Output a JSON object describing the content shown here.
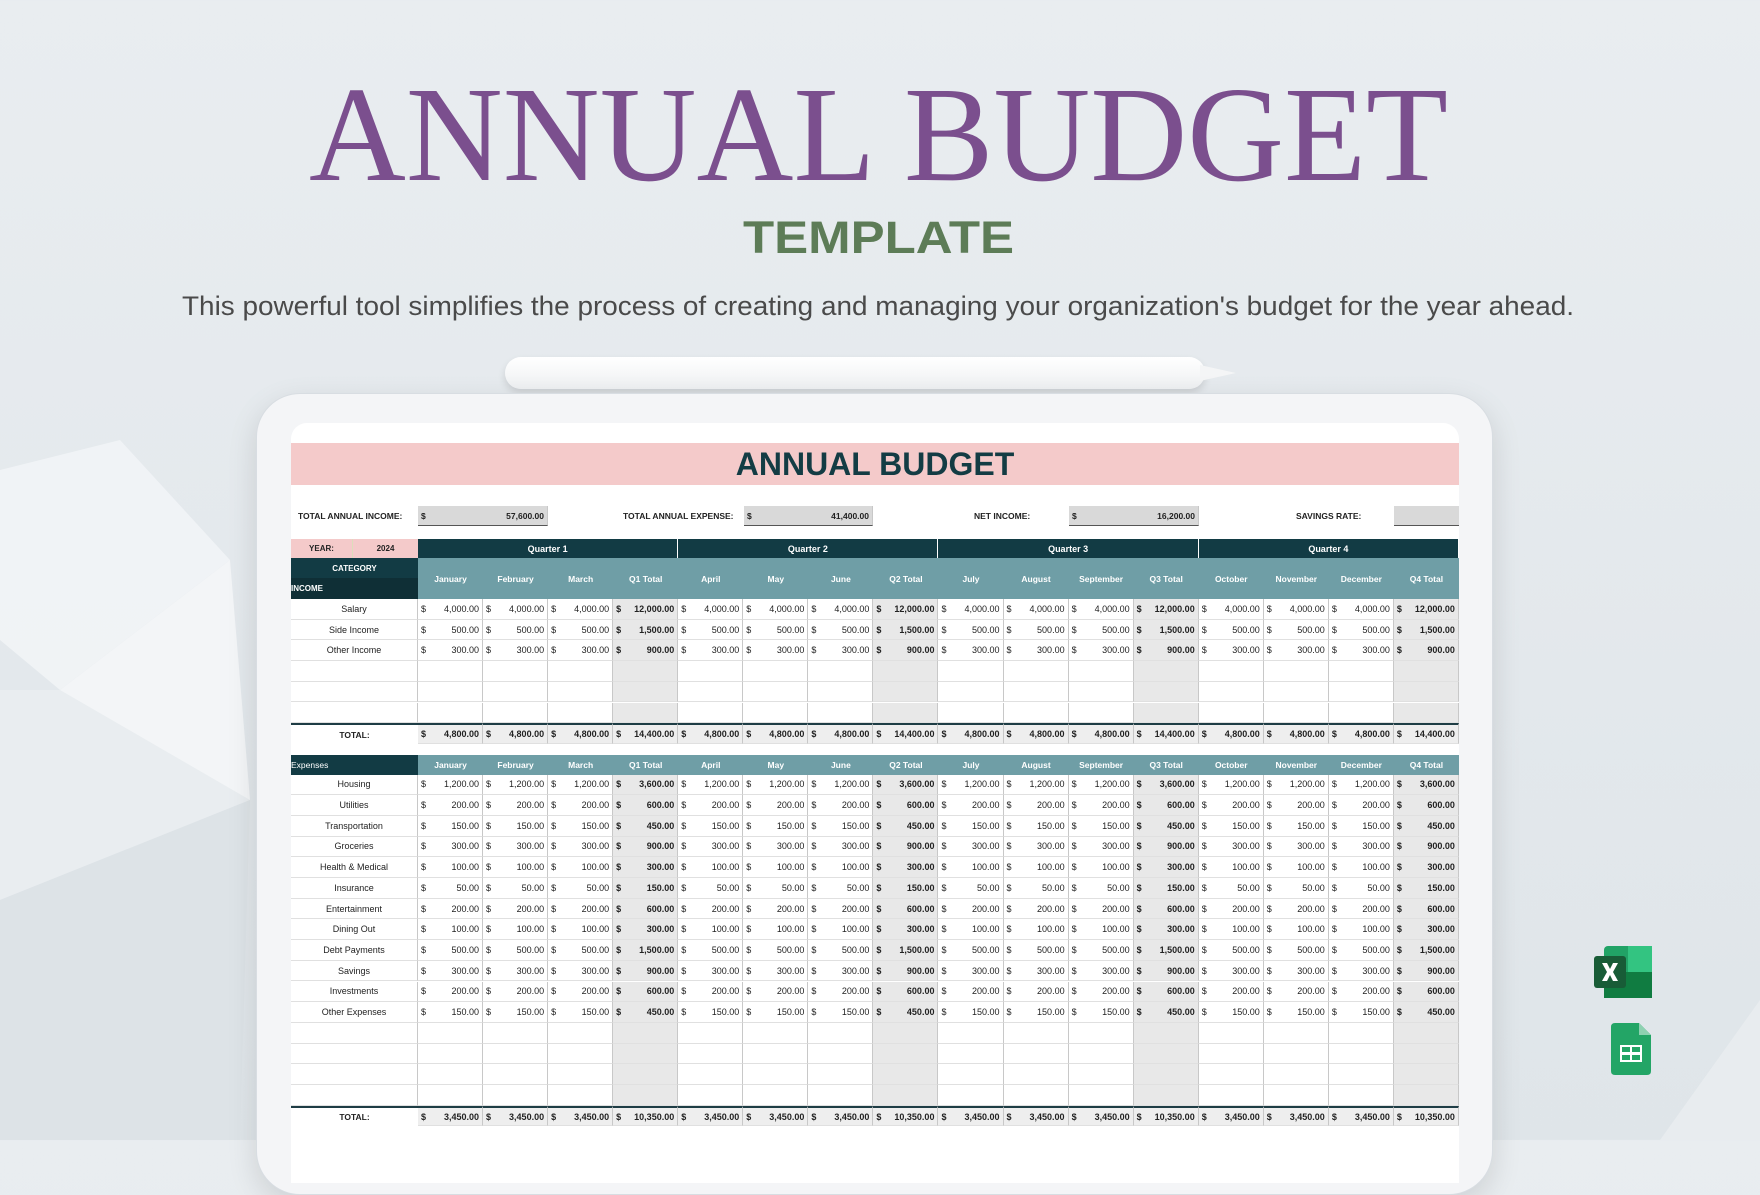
{
  "header": {
    "title": "ANNUAL BUDGET",
    "subtitle": "TEMPLATE",
    "description": "This powerful tool simplifies the process of creating and managing your organization's budget for the year ahead."
  },
  "sheet": {
    "title": "ANNUAL BUDGET",
    "currency": "$",
    "summary": [
      {
        "label": "TOTAL ANNUAL INCOME:",
        "value": "57,600.00"
      },
      {
        "label": "TOTAL ANNUAL EXPENSE:",
        "value": "41,400.00"
      },
      {
        "label": "NET INCOME:",
        "value": "16,200.00"
      },
      {
        "label": "SAVINGS RATE:"
      }
    ],
    "year_label": "YEAR:",
    "year": "2024",
    "quarters": [
      "Quarter 1",
      "Quarter 2",
      "Quarter 3",
      "Quarter 4"
    ],
    "category_label": "CATEGORY",
    "columns": [
      "January",
      "February",
      "March",
      "Q1 Total",
      "April",
      "May",
      "June",
      "Q2 Total",
      "July",
      "August",
      "September",
      "Q3 Total",
      "October",
      "November",
      "December",
      "Q4 Total"
    ],
    "income": {
      "label": "INCOME",
      "rows": [
        {
          "label": "Salary",
          "values": [
            "4,000.00",
            "4,000.00",
            "4,000.00",
            "12,000.00",
            "4,000.00",
            "4,000.00",
            "4,000.00",
            "12,000.00",
            "4,000.00",
            "4,000.00",
            "4,000.00",
            "12,000.00",
            "4,000.00",
            "4,000.00",
            "4,000.00",
            "12,000.00"
          ]
        },
        {
          "label": "Side Income",
          "values": [
            "500.00",
            "500.00",
            "500.00",
            "1,500.00",
            "500.00",
            "500.00",
            "500.00",
            "1,500.00",
            "500.00",
            "500.00",
            "500.00",
            "1,500.00",
            "500.00",
            "500.00",
            "500.00",
            "1,500.00"
          ]
        },
        {
          "label": "Other Income",
          "values": [
            "300.00",
            "300.00",
            "300.00",
            "900.00",
            "300.00",
            "300.00",
            "300.00",
            "900.00",
            "300.00",
            "300.00",
            "300.00",
            "900.00",
            "300.00",
            "300.00",
            "300.00",
            "900.00"
          ]
        }
      ],
      "total": {
        "label": "TOTAL:",
        "values": [
          "4,800.00",
          "4,800.00",
          "4,800.00",
          "14,400.00",
          "4,800.00",
          "4,800.00",
          "4,800.00",
          "14,400.00",
          "4,800.00",
          "4,800.00",
          "4,800.00",
          "14,400.00",
          "4,800.00",
          "4,800.00",
          "4,800.00",
          "14,400.00"
        ]
      }
    },
    "expenses": {
      "label": "Expenses",
      "rows": [
        {
          "label": "Housing",
          "values": [
            "1,200.00",
            "1,200.00",
            "1,200.00",
            "3,600.00",
            "1,200.00",
            "1,200.00",
            "1,200.00",
            "3,600.00",
            "1,200.00",
            "1,200.00",
            "1,200.00",
            "3,600.00",
            "1,200.00",
            "1,200.00",
            "1,200.00",
            "3,600.00"
          ]
        },
        {
          "label": "Utilities",
          "values": [
            "200.00",
            "200.00",
            "200.00",
            "600.00",
            "200.00",
            "200.00",
            "200.00",
            "600.00",
            "200.00",
            "200.00",
            "200.00",
            "600.00",
            "200.00",
            "200.00",
            "200.00",
            "600.00"
          ]
        },
        {
          "label": "Transportation",
          "values": [
            "150.00",
            "150.00",
            "150.00",
            "450.00",
            "150.00",
            "150.00",
            "150.00",
            "450.00",
            "150.00",
            "150.00",
            "150.00",
            "450.00",
            "150.00",
            "150.00",
            "150.00",
            "450.00"
          ]
        },
        {
          "label": "Groceries",
          "values": [
            "300.00",
            "300.00",
            "300.00",
            "900.00",
            "300.00",
            "300.00",
            "300.00",
            "900.00",
            "300.00",
            "300.00",
            "300.00",
            "900.00",
            "300.00",
            "300.00",
            "300.00",
            "900.00"
          ]
        },
        {
          "label": "Health & Medical",
          "values": [
            "100.00",
            "100.00",
            "100.00",
            "300.00",
            "100.00",
            "100.00",
            "100.00",
            "300.00",
            "100.00",
            "100.00",
            "100.00",
            "300.00",
            "100.00",
            "100.00",
            "100.00",
            "300.00"
          ]
        },
        {
          "label": "Insurance",
          "values": [
            "50.00",
            "50.00",
            "50.00",
            "150.00",
            "50.00",
            "50.00",
            "50.00",
            "150.00",
            "50.00",
            "50.00",
            "50.00",
            "150.00",
            "50.00",
            "50.00",
            "50.00",
            "150.00"
          ]
        },
        {
          "label": "Entertainment",
          "values": [
            "200.00",
            "200.00",
            "200.00",
            "600.00",
            "200.00",
            "200.00",
            "200.00",
            "600.00",
            "200.00",
            "200.00",
            "200.00",
            "600.00",
            "200.00",
            "200.00",
            "200.00",
            "600.00"
          ]
        },
        {
          "label": "Dining Out",
          "values": [
            "100.00",
            "100.00",
            "100.00",
            "300.00",
            "100.00",
            "100.00",
            "100.00",
            "300.00",
            "100.00",
            "100.00",
            "100.00",
            "300.00",
            "100.00",
            "100.00",
            "100.00",
            "300.00"
          ]
        },
        {
          "label": "Debt Payments",
          "values": [
            "500.00",
            "500.00",
            "500.00",
            "1,500.00",
            "500.00",
            "500.00",
            "500.00",
            "1,500.00",
            "500.00",
            "500.00",
            "500.00",
            "1,500.00",
            "500.00",
            "500.00",
            "500.00",
            "1,500.00"
          ]
        },
        {
          "label": "Savings",
          "values": [
            "300.00",
            "300.00",
            "300.00",
            "900.00",
            "300.00",
            "300.00",
            "300.00",
            "900.00",
            "300.00",
            "300.00",
            "300.00",
            "900.00",
            "300.00",
            "300.00",
            "300.00",
            "900.00"
          ]
        },
        {
          "label": "Investments",
          "values": [
            "200.00",
            "200.00",
            "200.00",
            "600.00",
            "200.00",
            "200.00",
            "200.00",
            "600.00",
            "200.00",
            "200.00",
            "200.00",
            "600.00",
            "200.00",
            "200.00",
            "200.00",
            "600.00"
          ]
        },
        {
          "label": "Other Expenses",
          "values": [
            "150.00",
            "150.00",
            "150.00",
            "450.00",
            "150.00",
            "150.00",
            "150.00",
            "450.00",
            "150.00",
            "150.00",
            "150.00",
            "450.00",
            "150.00",
            "150.00",
            "150.00",
            "450.00"
          ]
        }
      ],
      "total": {
        "label": "TOTAL:",
        "values": [
          "3,450.00",
          "3,450.00",
          "3,450.00",
          "10,350.00",
          "3,450.00",
          "3,450.00",
          "3,450.00",
          "10,350.00",
          "3,450.00",
          "3,450.00",
          "3,450.00",
          "10,350.00",
          "3,450.00",
          "3,450.00",
          "3,450.00",
          "10,350.00"
        ]
      }
    }
  }
}
